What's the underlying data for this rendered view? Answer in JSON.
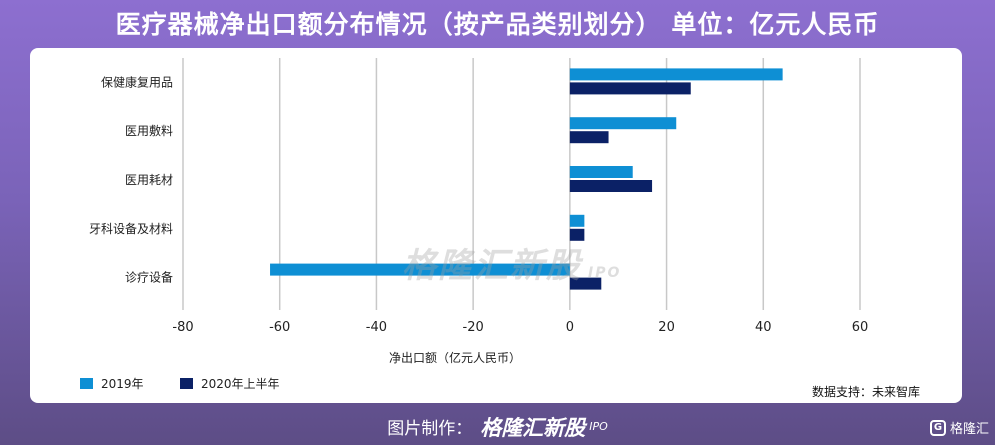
{
  "title": "医疗器械净出口额分布情况（按产品类别划分） 单位：亿元人民币",
  "source": "数据支持：未来智库",
  "watermark": {
    "brand": "格隆汇新股",
    "suffix": "IPO"
  },
  "footer": {
    "label": "图片制作：",
    "brand": "格隆汇新股",
    "suffix": "IPO"
  },
  "corner_logo": {
    "badge": "G",
    "text": "格隆汇"
  },
  "colors": {
    "series_2019": "#0e8fd4",
    "series_2020h1": "#0b2166",
    "grid": "#c8c8c8"
  },
  "chart_data": {
    "type": "bar",
    "orientation": "horizontal",
    "categories": [
      "保健康复用品",
      "医用敷料",
      "医用耗材",
      "牙科设备及材料",
      "诊疗设备"
    ],
    "series": [
      {
        "name": "2019年",
        "values": [
          44,
          22,
          13,
          3,
          -62
        ]
      },
      {
        "name": "2020年上半年",
        "values": [
          25,
          8,
          17,
          3,
          6.5
        ]
      }
    ],
    "xlabel": "净出口额（亿元人民币）",
    "ylabel": "",
    "xlim": [
      -80,
      60
    ],
    "xticks": [
      -80,
      -60,
      -40,
      -20,
      0,
      20,
      40,
      60
    ],
    "grid": true,
    "legend_position": "bottom-left"
  }
}
